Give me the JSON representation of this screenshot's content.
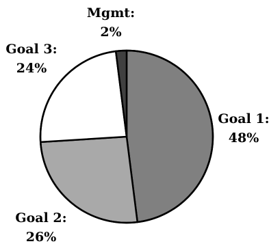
{
  "chart_data": {
    "type": "pie",
    "slices": [
      {
        "label": "Goal 1:",
        "value": 48,
        "value_text": "48%",
        "color": "#808080"
      },
      {
        "label": "Goal 2:",
        "value": 26,
        "value_text": "26%",
        "color": "#a9a9a9"
      },
      {
        "label": "Goal 3:",
        "value": 24,
        "value_text": "24%",
        "color": "#ffffff"
      },
      {
        "label": "Mgmt:",
        "value": 2,
        "value_text": "2%",
        "color": "#404040"
      }
    ],
    "start_angle_deg": 0,
    "direction": "clockwise",
    "legend": "none"
  }
}
